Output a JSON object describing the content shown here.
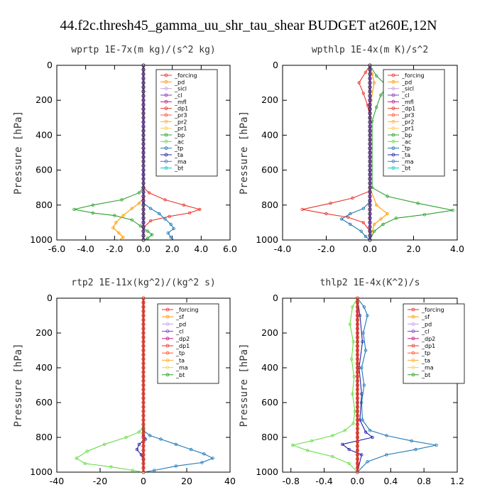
{
  "figure": {
    "title": "44.f2c.thresh45_gamma_uu_shr_tau_shear  BUDGET at260E,12N"
  },
  "chart_data": [
    {
      "type": "line",
      "title": "wprtp   1E-7x(m kg)/(s^2 kg)",
      "ylabel": "Pressure [hPa]",
      "xlim": [
        -6,
        6
      ],
      "ylim": [
        1000,
        0
      ],
      "xticks": [
        "-6.0",
        "-4.0",
        "-2.0",
        "0.0",
        "2.0",
        "4.0",
        "6.0"
      ],
      "yticks": [
        "0",
        "200",
        "400",
        "600",
        "800",
        "1000"
      ],
      "legend": [
        "_forcing",
        "_pd",
        "_sicl",
        "_cl",
        "_mfl",
        "_dp1",
        "_pr3",
        "_pr2",
        "_pr1",
        "_bp",
        "_ac",
        "_tp",
        "_ta",
        "_ma",
        "_bt"
      ],
      "series": [
        {
          "name": "_bp",
          "color": "#2ca02c",
          "points": [
            [
              0,
              0
            ],
            [
              0,
              700
            ],
            [
              -0.3,
              730
            ],
            [
              -1.5,
              770
            ],
            [
              -3.5,
              800
            ],
            [
              -4.8,
              825
            ],
            [
              -3.5,
              845
            ],
            [
              -2,
              860
            ],
            [
              -0.8,
              885
            ],
            [
              -0.2,
              920
            ],
            [
              0.3,
              950
            ],
            [
              0.6,
              970
            ],
            [
              0.3,
              990
            ],
            [
              0,
              1000
            ]
          ]
        },
        {
          "name": "_pr1",
          "color": "#ff9900",
          "points": [
            [
              0,
              0
            ],
            [
              0,
              760
            ],
            [
              -0.3,
              790
            ],
            [
              -0.8,
              820
            ],
            [
              -1.4,
              860
            ],
            [
              -1.9,
              900
            ],
            [
              -2.1,
              930
            ],
            [
              -1.7,
              960
            ],
            [
              -1.4,
              985
            ],
            [
              -1.7,
              1000
            ]
          ]
        },
        {
          "name": "_dp1",
          "color": "#e8352a",
          "points": [
            [
              0,
              0
            ],
            [
              0,
              700
            ],
            [
              0.4,
              730
            ],
            [
              1.5,
              770
            ],
            [
              2.8,
              800
            ],
            [
              3.9,
              825
            ],
            [
              3.2,
              845
            ],
            [
              1.8,
              865
            ],
            [
              0.5,
              890
            ],
            [
              0,
              930
            ],
            [
              0,
              1000
            ]
          ]
        },
        {
          "name": "_tp",
          "color": "#1f77b4",
          "points": [
            [
              0,
              0
            ],
            [
              0,
              790
            ],
            [
              0.5,
              820
            ],
            [
              1.1,
              850
            ],
            [
              1.5,
              880
            ],
            [
              1.9,
              910
            ],
            [
              2.1,
              935
            ],
            [
              1.7,
              960
            ],
            [
              1.9,
              985
            ],
            [
              2.1,
              1000
            ]
          ]
        },
        {
          "name": "_ac",
          "color": "#7f3fbf",
          "points": [
            [
              0,
              0
            ],
            [
              0,
              1000
            ]
          ]
        }
      ]
    },
    {
      "type": "line",
      "title": "wpthlp   1E-4x(m K)/s^2",
      "ylabel": "Pressure [hPa]",
      "xlim": [
        -4,
        4
      ],
      "ylim": [
        1000,
        0
      ],
      "xticks": [
        "-4.0",
        "-2.0",
        "0.0",
        "2.0",
        "4.0"
      ],
      "yticks": [
        "0",
        "200",
        "400",
        "600",
        "800",
        "1000"
      ],
      "legend": [
        "_forcing",
        "_pd",
        "_sicl",
        "_cl",
        "_mfl",
        "_dp1",
        "_pr3",
        "_pr2",
        "_pr1",
        "_bp",
        "_ac",
        "_tp",
        "_ta",
        "_ma",
        "_bt"
      ],
      "series": [
        {
          "name": "_bp",
          "color": "#2ca02c",
          "points": [
            [
              0,
              0
            ],
            [
              0.3,
              60
            ],
            [
              0.8,
              120
            ],
            [
              0.5,
              170
            ],
            [
              0.3,
              240
            ],
            [
              0.1,
              320
            ],
            [
              0.1,
              700
            ],
            [
              0.8,
              750
            ],
            [
              2.2,
              790
            ],
            [
              3.8,
              830
            ],
            [
              2.5,
              855
            ],
            [
              1.2,
              875
            ],
            [
              0.6,
              910
            ],
            [
              0.2,
              950
            ],
            [
              0,
              1000
            ]
          ]
        },
        {
          "name": "_dp1",
          "color": "#e8352a",
          "points": [
            [
              0,
              0
            ],
            [
              -0.2,
              40
            ],
            [
              -0.5,
              100
            ],
            [
              -0.3,
              160
            ],
            [
              -0.1,
              230
            ],
            [
              0,
              300
            ],
            [
              0,
              720
            ],
            [
              -0.8,
              760
            ],
            [
              -1.8,
              790
            ],
            [
              -3.1,
              825
            ],
            [
              -2,
              850
            ],
            [
              -1,
              870
            ],
            [
              -0.3,
              900
            ],
            [
              0,
              950
            ],
            [
              0,
              1000
            ]
          ]
        },
        {
          "name": "_tp",
          "color": "#1f77b4",
          "points": [
            [
              0,
              0
            ],
            [
              0,
              780
            ],
            [
              -0.3,
              820
            ],
            [
              -0.9,
              850
            ],
            [
              -1.3,
              880
            ],
            [
              -0.9,
              910
            ],
            [
              -0.4,
              950
            ],
            [
              -0.2,
              980
            ],
            [
              0,
              1000
            ]
          ]
        },
        {
          "name": "_pr1",
          "color": "#ff9900",
          "points": [
            [
              0,
              0
            ],
            [
              0.1,
              50
            ],
            [
              0.2,
              100
            ],
            [
              0.05,
              200
            ],
            [
              0,
              700
            ],
            [
              0.3,
              800
            ],
            [
              0.8,
              850
            ],
            [
              0.5,
              880
            ],
            [
              0.2,
              910
            ],
            [
              0,
              1000
            ]
          ]
        },
        {
          "name": "_ac",
          "color": "#7f3fbf",
          "points": [
            [
              0,
              0
            ],
            [
              0,
              1000
            ]
          ]
        }
      ]
    },
    {
      "type": "line",
      "title": "rtp2   1E-11x(kg^2)/(kg^2 s)",
      "ylabel": "Pressure [hPa]",
      "xlim": [
        -40,
        40
      ],
      "ylim": [
        1000,
        0
      ],
      "xticks": [
        "-40",
        "-20",
        "0",
        "20",
        "40"
      ],
      "yticks": [
        "0",
        "200",
        "400",
        "600",
        "800",
        "1000"
      ],
      "legend": [
        "_forcing",
        "_sf",
        "_pd",
        "_cl",
        "_dp2",
        "_dp1",
        "_tp",
        "_ta",
        "_ma",
        "_bt"
      ],
      "series": [
        {
          "name": "_dp1",
          "color": "#66dd44",
          "points": [
            [
              0,
              0
            ],
            [
              0,
              740
            ],
            [
              -2,
              770
            ],
            [
              -8,
              800
            ],
            [
              -18,
              840
            ],
            [
              -26,
              880
            ],
            [
              -31,
              920
            ],
            [
              -27,
              950
            ],
            [
              -15,
              970
            ],
            [
              -5,
              990
            ],
            [
              0,
              1000
            ]
          ]
        },
        {
          "name": "_tp",
          "color": "#1f77b4",
          "points": [
            [
              0,
              0
            ],
            [
              0,
              760
            ],
            [
              3,
              790
            ],
            [
              8,
              810
            ],
            [
              15,
              840
            ],
            [
              22,
              870
            ],
            [
              28,
              895
            ],
            [
              32,
              920
            ],
            [
              27,
              945
            ],
            [
              15,
              965
            ],
            [
              5,
              990
            ],
            [
              0,
              1000
            ]
          ]
        },
        {
          "name": "_ta",
          "color": "#2222aa",
          "points": [
            [
              0,
              0
            ],
            [
              0,
              790
            ],
            [
              1,
              810
            ],
            [
              -2,
              840
            ],
            [
              -3,
              870
            ],
            [
              -1,
              900
            ],
            [
              0,
              930
            ],
            [
              0,
              1000
            ]
          ]
        },
        {
          "name": "_forcing",
          "color": "#e8352a",
          "points": [
            [
              0,
              0
            ],
            [
              0,
              1000
            ]
          ]
        }
      ]
    },
    {
      "type": "line",
      "title": "thlp2   1E-4x(K^2)/s",
      "ylabel": "Pressure [hPa]",
      "xlim": [
        -0.9,
        1.2
      ],
      "ylim": [
        1000,
        0
      ],
      "xticks": [
        "-0.8",
        "-0.4",
        "0.0",
        "0.4",
        "0.8",
        "1.2"
      ],
      "yticks": [
        "0",
        "200",
        "400",
        "600",
        "800",
        "1000"
      ],
      "legend": [
        "_forcing",
        "_sf",
        "_pd",
        "_cl",
        "_dp2",
        "_dp1",
        "_tp",
        "_ta",
        "_ma",
        "_bt"
      ],
      "series": [
        {
          "name": "_dp1",
          "color": "#66dd44",
          "points": [
            [
              0,
              0
            ],
            [
              -0.06,
              50
            ],
            [
              -0.09,
              150
            ],
            [
              -0.05,
              250
            ],
            [
              -0.07,
              350
            ],
            [
              -0.04,
              450
            ],
            [
              -0.06,
              550
            ],
            [
              -0.03,
              650
            ],
            [
              -0.05,
              720
            ],
            [
              -0.15,
              760
            ],
            [
              -0.3,
              790
            ],
            [
              -0.55,
              820
            ],
            [
              -0.78,
              845
            ],
            [
              -0.6,
              875
            ],
            [
              -0.3,
              910
            ],
            [
              -0.1,
              950
            ],
            [
              0,
              1000
            ]
          ]
        },
        {
          "name": "_tp",
          "color": "#1f77b4",
          "points": [
            [
              0,
              0
            ],
            [
              0.08,
              50
            ],
            [
              0.12,
              100
            ],
            [
              0.07,
              200
            ],
            [
              0.1,
              300
            ],
            [
              0.05,
              400
            ],
            [
              0.08,
              500
            ],
            [
              0.05,
              600
            ],
            [
              0.06,
              700
            ],
            [
              0.15,
              760
            ],
            [
              0.35,
              790
            ],
            [
              0.65,
              820
            ],
            [
              0.95,
              845
            ],
            [
              0.7,
              870
            ],
            [
              0.35,
              900
            ],
            [
              0.12,
              940
            ],
            [
              0,
              1000
            ]
          ]
        },
        {
          "name": "_ta",
          "color": "#2222aa",
          "points": [
            [
              0,
              0
            ],
            [
              0.03,
              100
            ],
            [
              0.06,
              250
            ],
            [
              0.02,
              400
            ],
            [
              0.05,
              550
            ],
            [
              0.03,
              700
            ],
            [
              0.1,
              770
            ],
            [
              0.18,
              800
            ],
            [
              -0.18,
              840
            ],
            [
              -0.1,
              870
            ],
            [
              0.05,
              900
            ],
            [
              0,
              1000
            ]
          ]
        },
        {
          "name": "_forcing",
          "color": "#e8352a",
          "points": [
            [
              0,
              0
            ],
            [
              0,
              1000
            ]
          ]
        }
      ]
    }
  ]
}
